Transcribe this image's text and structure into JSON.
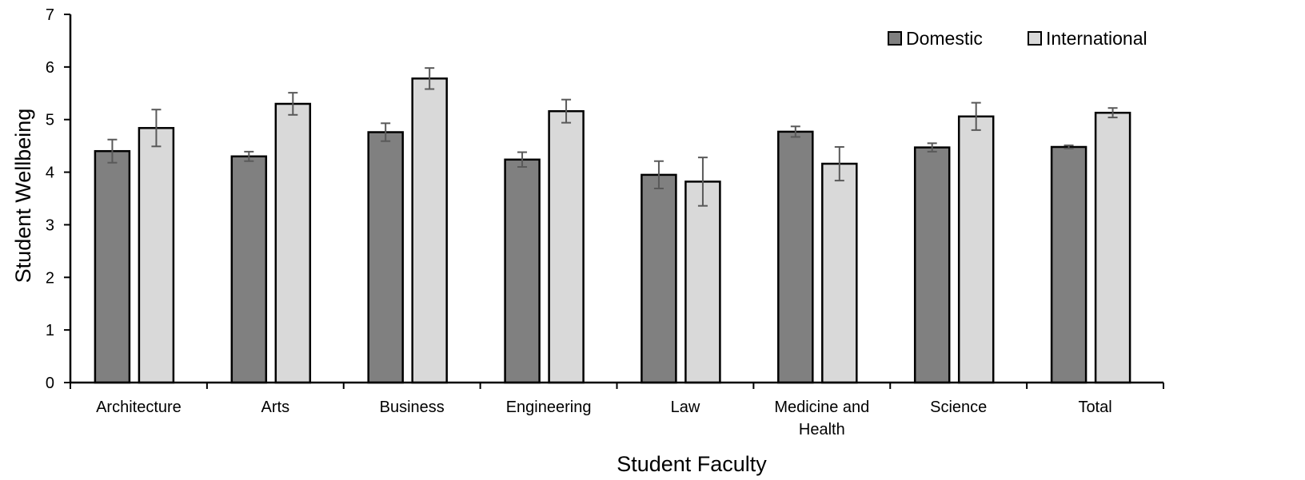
{
  "chart_data": {
    "type": "bar",
    "title": "",
    "xlabel": "Student Faculty",
    "ylabel": "Student Wellbeing",
    "ylim": [
      0,
      7
    ],
    "yticks": [
      0,
      1,
      2,
      3,
      4,
      5,
      6,
      7
    ],
    "grid": false,
    "legend_position": "top-right",
    "categories": [
      [
        "Architecture"
      ],
      [
        "Arts"
      ],
      [
        "Business"
      ],
      [
        "Engineering"
      ],
      [
        "Law"
      ],
      [
        "Medicine and",
        "Health"
      ],
      [
        "Science"
      ],
      [
        "Total"
      ]
    ],
    "series": [
      {
        "name": "Domestic",
        "color": "#808080",
        "values": [
          4.4,
          4.3,
          4.76,
          4.24,
          3.95,
          4.77,
          4.47,
          4.48
        ],
        "errors": [
          0.22,
          0.09,
          0.17,
          0.14,
          0.26,
          0.1,
          0.08,
          0.03
        ]
      },
      {
        "name": "International",
        "color": "#d9d9d9",
        "values": [
          4.84,
          5.3,
          5.78,
          5.16,
          3.82,
          4.16,
          5.06,
          5.13
        ],
        "errors": [
          0.35,
          0.21,
          0.2,
          0.22,
          0.46,
          0.32,
          0.26,
          0.09
        ]
      }
    ]
  }
}
